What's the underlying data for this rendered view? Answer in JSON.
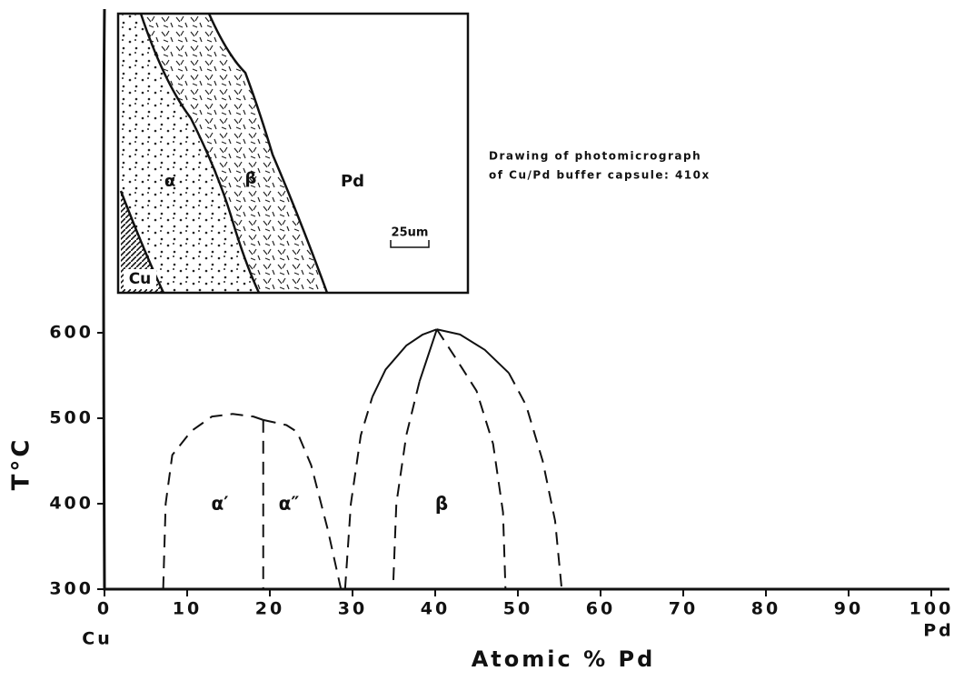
{
  "chart_data": {
    "type": "line",
    "xlabel": "Atomic % Pd",
    "ylabel": "T°C",
    "xlim": [
      0,
      100
    ],
    "ylim": [
      300,
      600
    ],
    "xticks": [
      0,
      10,
      20,
      30,
      40,
      50,
      60,
      70,
      80,
      90,
      100
    ],
    "yticks": [
      300,
      400,
      500,
      600
    ],
    "x_end_labels": [
      "Cu",
      "Pd"
    ],
    "color": "#111111",
    "series": [
      {
        "dashed": true,
        "x": [
          7.1,
          7.4,
          8.2,
          10.5,
          13,
          15.5,
          18,
          19.2
        ],
        "values": [
          300,
          400,
          457,
          485,
          502,
          505,
          502,
          498
        ]
      },
      {
        "dashed": true,
        "x": [
          19.2,
          19.2
        ],
        "values": [
          498,
          300
        ]
      },
      {
        "dashed": true,
        "x": [
          19.2,
          22,
          23.3,
          25,
          27,
          28.6
        ],
        "values": [
          498,
          492,
          484,
          445,
          370,
          300
        ]
      },
      {
        "dashed": true,
        "x": [
          29.1,
          29.8,
          31,
          32.4
        ],
        "values": [
          300,
          400,
          480,
          525
        ]
      },
      {
        "dashed": false,
        "x": [
          32.4,
          34,
          36.5,
          38.5,
          40.2
        ],
        "values": [
          525,
          557,
          585,
          598,
          604
        ]
      },
      {
        "dashed": false,
        "x": [
          40.2,
          43,
          46,
          48.9
        ],
        "values": [
          604,
          598,
          580,
          553
        ]
      },
      {
        "dashed": true,
        "x": [
          48.9,
          51,
          53,
          54.5,
          55.3
        ],
        "values": [
          553,
          515,
          450,
          380,
          300
        ]
      },
      {
        "dashed": false,
        "x": [
          40.2,
          39.2,
          38.1
        ],
        "values": [
          604,
          575,
          543
        ]
      },
      {
        "dashed": true,
        "x": [
          38.1,
          36.5,
          35.3,
          34.9
        ],
        "values": [
          543,
          480,
          400,
          300
        ]
      },
      {
        "dashed": true,
        "x": [
          40.2,
          42.5,
          45,
          47,
          48.2,
          48.5
        ],
        "values": [
          604,
          570,
          532,
          470,
          390,
          300
        ]
      }
    ],
    "annotations": [
      "α′",
      "α″",
      "β"
    ]
  },
  "inset": {
    "labels": [
      "α",
      "β",
      "Pd",
      "Cu"
    ],
    "scale_bar": "25um",
    "caption": [
      "Drawing of photomicrograph",
      "of Cu/Pd buffer capsule: 410x"
    ]
  }
}
